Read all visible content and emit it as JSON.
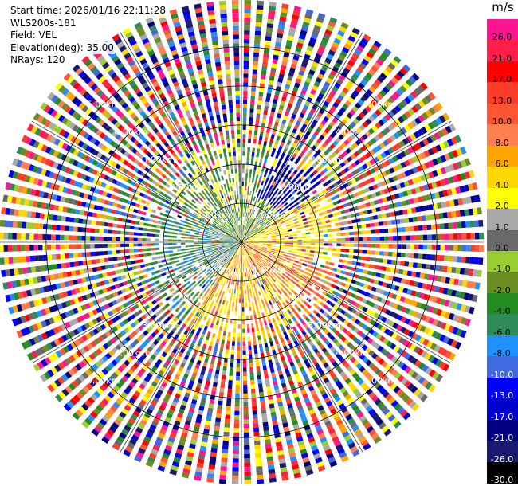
{
  "header": {
    "start_time": "Start time: 2026/01/16 22:11:28",
    "instrument": "WLS200s-181",
    "field": "Field: VEL",
    "elevation": "Elevation(deg): 35.00",
    "nrays": "NRays: 120"
  },
  "colorbar": {
    "unit": "m/s",
    "bins": [
      {
        "label": "26.0",
        "color": "#ff1493",
        "text_color": "#000000"
      },
      {
        "label": "21.0",
        "color": "#ff1f4a",
        "text_color": "#000000"
      },
      {
        "label": "17.0",
        "color": "#ff0000",
        "text_color": "#000000"
      },
      {
        "label": "13.0",
        "color": "#ff3c28",
        "text_color": "#000000"
      },
      {
        "label": "10.0",
        "color": "#ff5533",
        "text_color": "#000000"
      },
      {
        "label": "8.0",
        "color": "#ff7f50",
        "text_color": "#000000"
      },
      {
        "label": "6.0",
        "color": "#ffa500",
        "text_color": "#000000"
      },
      {
        "label": "4.0",
        "color": "#ffd700",
        "text_color": "#000000"
      },
      {
        "label": "2.0",
        "color": "#ffff00",
        "text_color": "#000000"
      },
      {
        "label": "1.0",
        "color": "#a9a9a9",
        "text_color": "#000000"
      },
      {
        "label": "0.0",
        "color": "#696969",
        "text_color": "#000000"
      },
      {
        "label": "-1.0",
        "color": "#9acd32",
        "text_color": "#000000"
      },
      {
        "label": "-2.0",
        "color": "#6b8e23",
        "text_color": "#000000"
      },
      {
        "label": "-4.0",
        "color": "#228b22",
        "text_color": "#000000"
      },
      {
        "label": "-6.0",
        "color": "#2e8b57",
        "text_color": "#000000"
      },
      {
        "label": "-8.0",
        "color": "#1e90ff",
        "text_color": "#000000"
      },
      {
        "label": "-10.0",
        "color": "#4169e1",
        "text_color": "#ffffff"
      },
      {
        "label": "-13.0",
        "color": "#0000ff",
        "text_color": "#ffffff"
      },
      {
        "label": "-17.0",
        "color": "#0000cd",
        "text_color": "#ffffff"
      },
      {
        "label": "-21.0",
        "color": "#000080",
        "text_color": "#ffffff"
      },
      {
        "label": "-26.0",
        "color": "#191970",
        "text_color": "#ffffff"
      },
      {
        "label": "-30.0",
        "color": "#000000",
        "text_color": "#ffffff"
      }
    ]
  },
  "chart_data": {
    "type": "heatmap",
    "projection": "polar PPI",
    "field": "VEL",
    "nrays": 120,
    "elevation_deg": 35.0,
    "range_km_max": 6.2,
    "range_rings_km": [
      1.0,
      2.0,
      3.0,
      4.0,
      5.0
    ],
    "ring_labels": [
      "1.00km",
      "2.00km",
      "3.00km",
      "4.00km",
      "5.00km"
    ],
    "ring_label_diagonals": [
      "top-left",
      "top-right",
      "bottom-left",
      "bottom-right"
    ],
    "spokes": "every 30 degrees",
    "near_field_pattern": "sector gradients: green/white west, yellow-orange east and south-east, navy north-east",
    "far_field_pattern": "aliased noise (mixed colors)",
    "series": [],
    "grid": true
  }
}
